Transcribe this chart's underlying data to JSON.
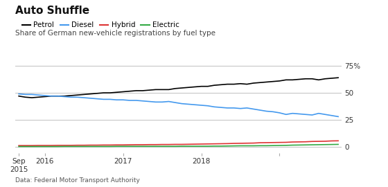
{
  "title": "Auto Shuffle",
  "subtitle": "Share of German new-vehicle registrations by fuel type",
  "footnote": "Data: Federal Motor Transport Authority",
  "legend": [
    "Petrol",
    "Diesel",
    "Hybrid",
    "Electric"
  ],
  "legend_colors": [
    "#000000",
    "#4499ee",
    "#dd3333",
    "#33aa44"
  ],
  "yticks": [
    0,
    25,
    50,
    75
  ],
  "ylim": [
    -6,
    84
  ],
  "background_color": "#ffffff",
  "petrol": [
    47,
    46,
    45.5,
    46,
    46.5,
    47,
    47,
    47,
    47.5,
    48,
    48.5,
    49,
    49.5,
    50,
    50,
    50.5,
    51,
    51.5,
    52,
    52,
    52.5,
    53,
    53,
    53,
    54,
    54.5,
    55,
    55.5,
    56,
    56,
    57,
    57.5,
    58,
    58,
    58.5,
    58,
    59,
    59.5,
    60,
    60.5,
    61,
    62,
    62,
    62.5,
    63,
    63,
    62,
    63,
    63.5,
    64
  ],
  "diesel": [
    49,
    48.5,
    48.5,
    48,
    47.5,
    47,
    47,
    46.5,
    46,
    46,
    45.5,
    45,
    44.5,
    44,
    44,
    43.5,
    43.5,
    43,
    43,
    42.5,
    42,
    41.5,
    41.5,
    42,
    41,
    40,
    39.5,
    39,
    38.5,
    38,
    37,
    36.5,
    36,
    36,
    35.5,
    36,
    35,
    34,
    33,
    32.5,
    31.5,
    30,
    31,
    30.5,
    30,
    29.5,
    31,
    30,
    29,
    28
  ],
  "hybrid": [
    1.2,
    1.2,
    1.2,
    1.3,
    1.3,
    1.3,
    1.4,
    1.4,
    1.4,
    1.5,
    1.5,
    1.6,
    1.6,
    1.7,
    1.7,
    1.8,
    1.8,
    1.9,
    2.0,
    2.0,
    2.1,
    2.1,
    2.2,
    2.2,
    2.3,
    2.3,
    2.4,
    2.5,
    2.6,
    2.7,
    2.8,
    2.9,
    3.0,
    3.2,
    3.3,
    3.4,
    3.5,
    3.8,
    3.9,
    4.0,
    4.1,
    4.2,
    4.5,
    4.6,
    4.7,
    5.0,
    5.1,
    5.2,
    5.5,
    5.6
  ],
  "electric": [
    0.3,
    0.3,
    0.3,
    0.3,
    0.3,
    0.3,
    0.3,
    0.4,
    0.4,
    0.4,
    0.4,
    0.4,
    0.4,
    0.4,
    0.4,
    0.5,
    0.5,
    0.5,
    0.5,
    0.5,
    0.5,
    0.5,
    0.5,
    0.5,
    0.5,
    0.6,
    0.6,
    0.6,
    0.6,
    0.6,
    0.7,
    0.7,
    0.8,
    0.9,
    1.0,
    1.0,
    1.0,
    1.1,
    1.1,
    1.2,
    1.3,
    1.4,
    1.6,
    1.7,
    1.8,
    1.9,
    2.0,
    2.1,
    2.2,
    2.3
  ],
  "x_tick_positions": [
    0,
    4,
    16,
    28,
    40
  ],
  "x_tick_labels": [
    "Sep\n2015",
    "2016",
    "2017",
    "2018",
    ""
  ]
}
